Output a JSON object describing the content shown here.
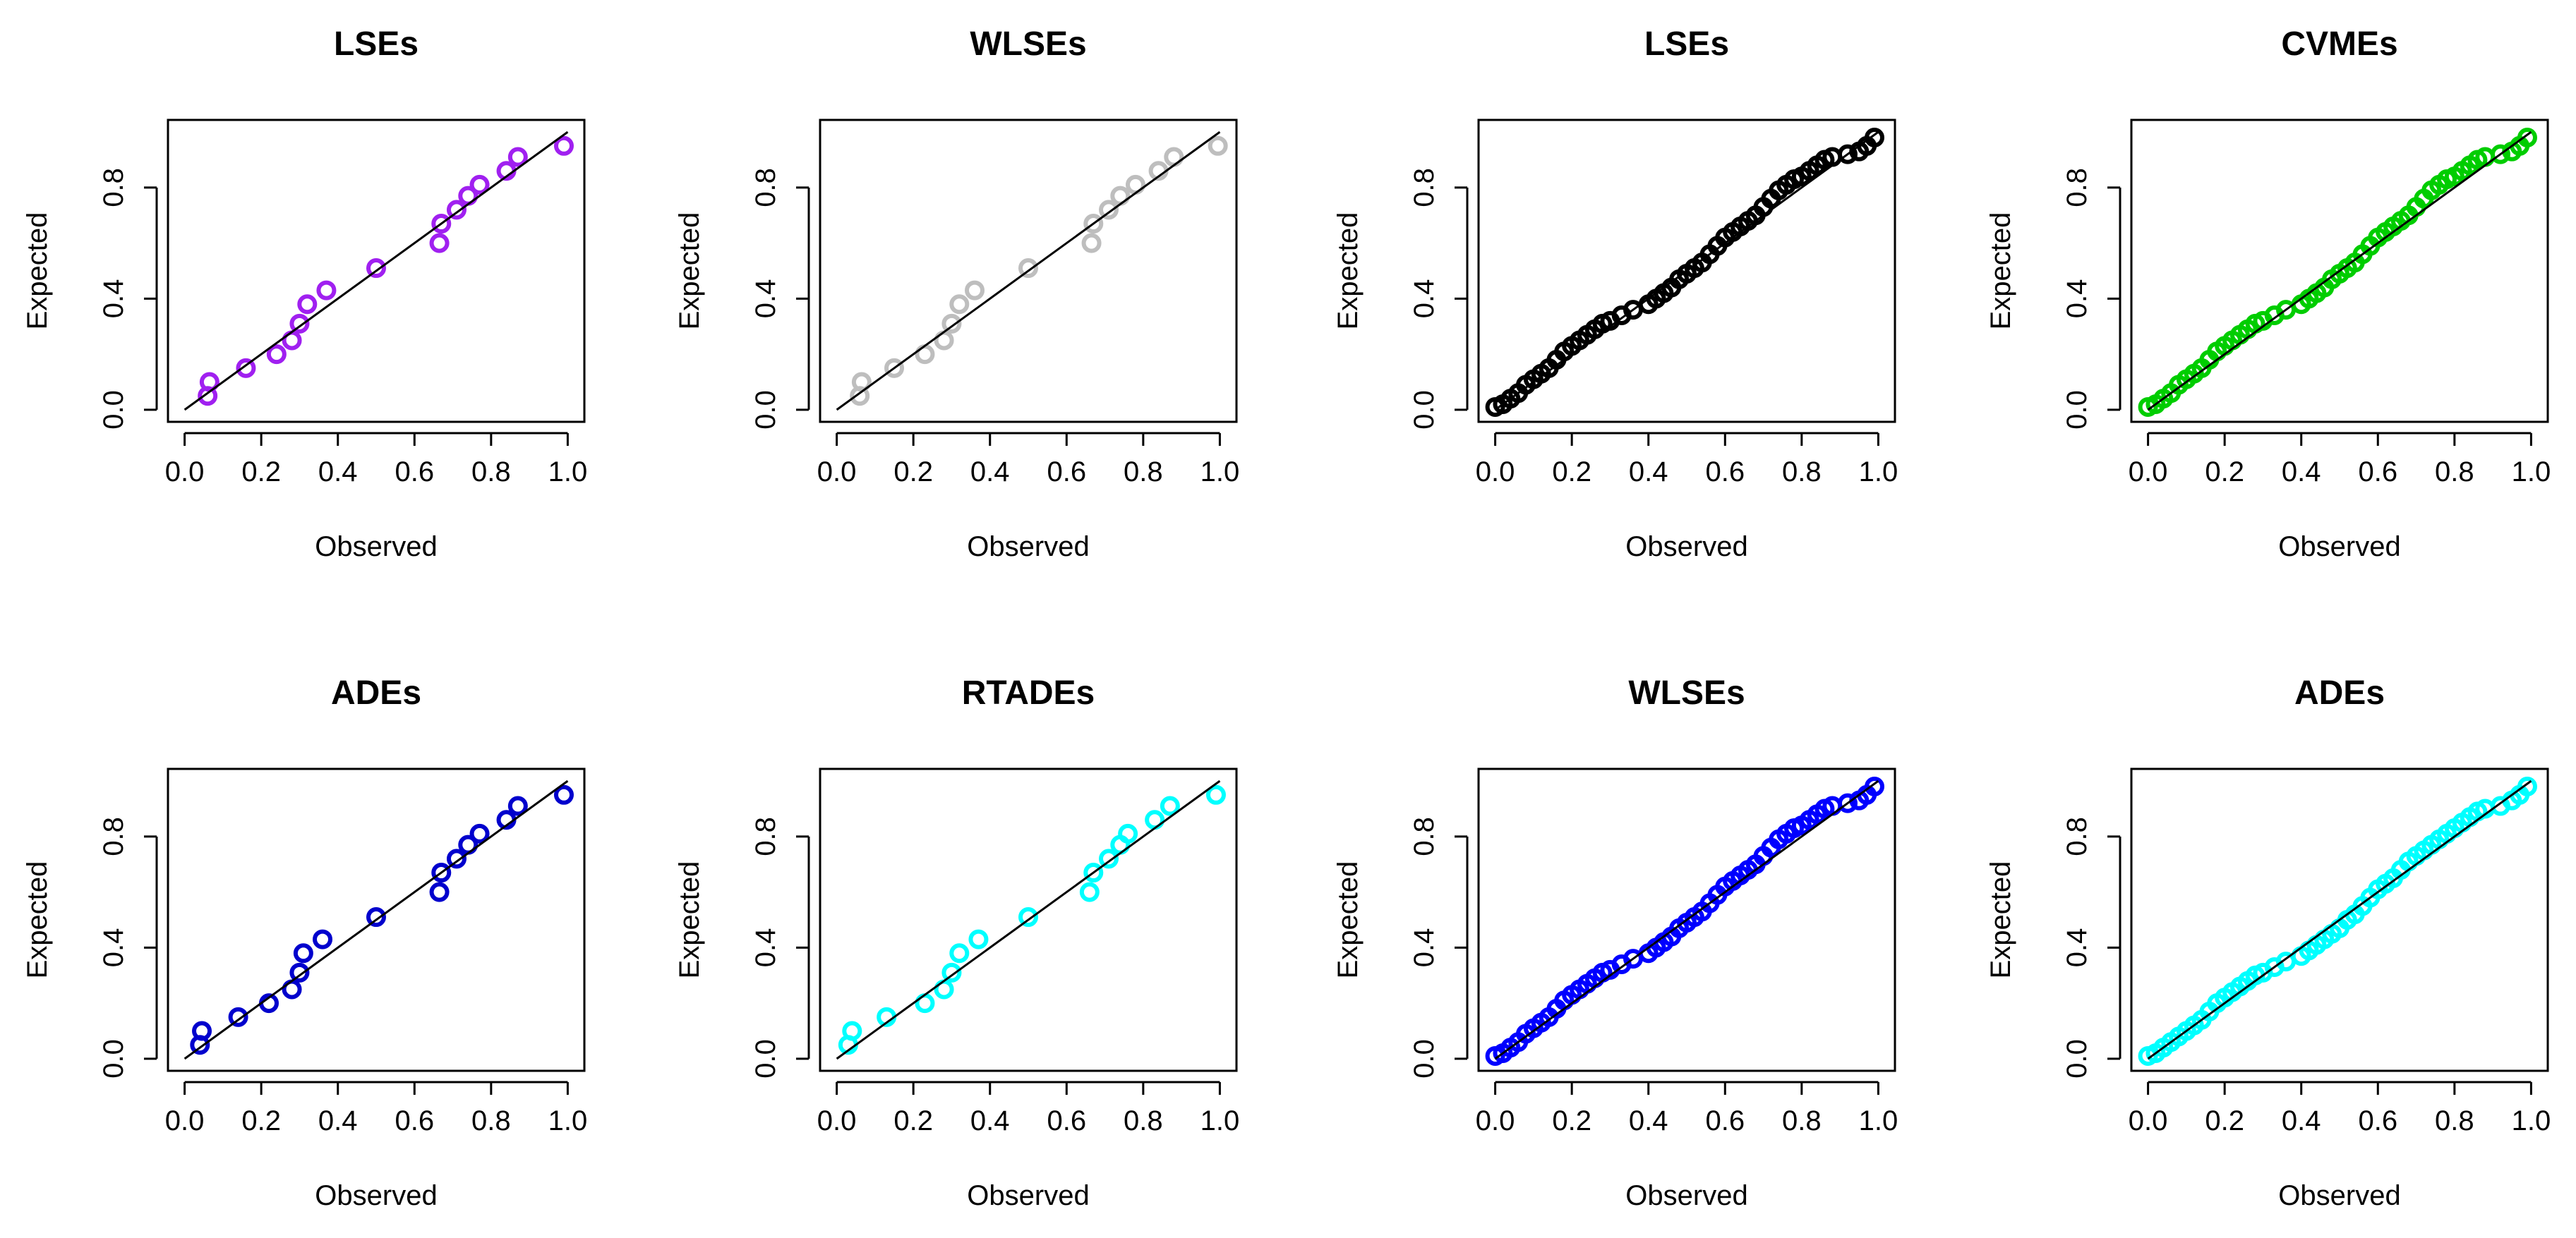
{
  "chart_data": [
    {
      "type": "scatter",
      "title": "LSEs",
      "xlabel": "Observed",
      "ylabel": "Expected",
      "xlim": [
        0,
        1
      ],
      "ylim": [
        0,
        1
      ],
      "xticks": [
        "0.0",
        "0.2",
        "0.4",
        "0.6",
        "0.8",
        "1.0"
      ],
      "yticks": [
        "0.0",
        "0.4",
        "0.8"
      ],
      "color": "#a020f0",
      "reference_line": [
        [
          0,
          0
        ],
        [
          1,
          1
        ]
      ],
      "points": [
        [
          0.06,
          0.05
        ],
        [
          0.065,
          0.1
        ],
        [
          0.16,
          0.15
        ],
        [
          0.24,
          0.2
        ],
        [
          0.28,
          0.25
        ],
        [
          0.3,
          0.31
        ],
        [
          0.32,
          0.38
        ],
        [
          0.37,
          0.43
        ],
        [
          0.5,
          0.51
        ],
        [
          0.665,
          0.6
        ],
        [
          0.67,
          0.67
        ],
        [
          0.71,
          0.72
        ],
        [
          0.74,
          0.77
        ],
        [
          0.77,
          0.81
        ],
        [
          0.84,
          0.86
        ],
        [
          0.87,
          0.91
        ],
        [
          0.99,
          0.95
        ]
      ]
    },
    {
      "type": "scatter",
      "title": "WLSEs",
      "xlabel": "Observed",
      "ylabel": "Expected",
      "xlim": [
        0,
        1
      ],
      "ylim": [
        0,
        1
      ],
      "xticks": [
        "0.0",
        "0.2",
        "0.4",
        "0.6",
        "0.8",
        "1.0"
      ],
      "yticks": [
        "0.0",
        "0.4",
        "0.8"
      ],
      "color": "#bebebe",
      "reference_line": [
        [
          0,
          0
        ],
        [
          1,
          1
        ]
      ],
      "points": [
        [
          0.06,
          0.05
        ],
        [
          0.065,
          0.1
        ],
        [
          0.15,
          0.15
        ],
        [
          0.23,
          0.2
        ],
        [
          0.28,
          0.25
        ],
        [
          0.3,
          0.31
        ],
        [
          0.32,
          0.38
        ],
        [
          0.36,
          0.43
        ],
        [
          0.5,
          0.51
        ],
        [
          0.665,
          0.6
        ],
        [
          0.67,
          0.67
        ],
        [
          0.71,
          0.72
        ],
        [
          0.74,
          0.77
        ],
        [
          0.78,
          0.81
        ],
        [
          0.84,
          0.86
        ],
        [
          0.88,
          0.91
        ],
        [
          0.995,
          0.95
        ]
      ]
    },
    {
      "type": "scatter",
      "title": "LSEs",
      "xlabel": "Observed",
      "ylabel": "Expected",
      "xlim": [
        0,
        1
      ],
      "ylim": [
        0,
        1
      ],
      "xticks": [
        "0.0",
        "0.2",
        "0.4",
        "0.6",
        "0.8",
        "1.0"
      ],
      "yticks": [
        "0.0",
        "0.4",
        "0.8"
      ],
      "color": "#000000",
      "reference_line": [
        [
          0,
          0
        ],
        [
          1,
          1
        ]
      ],
      "points": [
        [
          0.0,
          0.01
        ],
        [
          0.02,
          0.02
        ],
        [
          0.04,
          0.04
        ],
        [
          0.06,
          0.06
        ],
        [
          0.08,
          0.09
        ],
        [
          0.1,
          0.11
        ],
        [
          0.12,
          0.13
        ],
        [
          0.14,
          0.15
        ],
        [
          0.16,
          0.18
        ],
        [
          0.18,
          0.21
        ],
        [
          0.2,
          0.23
        ],
        [
          0.22,
          0.25
        ],
        [
          0.24,
          0.27
        ],
        [
          0.26,
          0.29
        ],
        [
          0.28,
          0.31
        ],
        [
          0.3,
          0.32
        ],
        [
          0.33,
          0.34
        ],
        [
          0.36,
          0.36
        ],
        [
          0.4,
          0.38
        ],
        [
          0.42,
          0.4
        ],
        [
          0.44,
          0.42
        ],
        [
          0.46,
          0.44
        ],
        [
          0.48,
          0.47
        ],
        [
          0.5,
          0.49
        ],
        [
          0.52,
          0.51
        ],
        [
          0.54,
          0.53
        ],
        [
          0.56,
          0.56
        ],
        [
          0.58,
          0.59
        ],
        [
          0.6,
          0.62
        ],
        [
          0.62,
          0.64
        ],
        [
          0.64,
          0.66
        ],
        [
          0.66,
          0.68
        ],
        [
          0.68,
          0.7
        ],
        [
          0.7,
          0.73
        ],
        [
          0.72,
          0.76
        ],
        [
          0.74,
          0.79
        ],
        [
          0.76,
          0.81
        ],
        [
          0.78,
          0.83
        ],
        [
          0.8,
          0.84
        ],
        [
          0.82,
          0.86
        ],
        [
          0.84,
          0.88
        ],
        [
          0.86,
          0.9
        ],
        [
          0.88,
          0.91
        ],
        [
          0.92,
          0.92
        ],
        [
          0.95,
          0.93
        ],
        [
          0.97,
          0.95
        ],
        [
          0.99,
          0.98
        ]
      ]
    },
    {
      "type": "scatter",
      "title": "CVMEs",
      "xlabel": "Observed",
      "ylabel": "Expected",
      "xlim": [
        0,
        1
      ],
      "ylim": [
        0,
        1
      ],
      "xticks": [
        "0.0",
        "0.2",
        "0.4",
        "0.6",
        "0.8",
        "1.0"
      ],
      "yticks": [
        "0.0",
        "0.4",
        "0.8"
      ],
      "color": "#00cd00",
      "reference_line": [
        [
          0,
          0
        ],
        [
          1,
          1
        ]
      ],
      "points": [
        [
          0.0,
          0.01
        ],
        [
          0.02,
          0.02
        ],
        [
          0.04,
          0.04
        ],
        [
          0.06,
          0.06
        ],
        [
          0.08,
          0.09
        ],
        [
          0.1,
          0.11
        ],
        [
          0.12,
          0.13
        ],
        [
          0.14,
          0.15
        ],
        [
          0.16,
          0.18
        ],
        [
          0.18,
          0.21
        ],
        [
          0.2,
          0.23
        ],
        [
          0.22,
          0.25
        ],
        [
          0.24,
          0.27
        ],
        [
          0.26,
          0.29
        ],
        [
          0.28,
          0.31
        ],
        [
          0.3,
          0.32
        ],
        [
          0.33,
          0.34
        ],
        [
          0.36,
          0.36
        ],
        [
          0.4,
          0.38
        ],
        [
          0.42,
          0.4
        ],
        [
          0.44,
          0.42
        ],
        [
          0.46,
          0.44
        ],
        [
          0.48,
          0.47
        ],
        [
          0.5,
          0.49
        ],
        [
          0.52,
          0.51
        ],
        [
          0.54,
          0.53
        ],
        [
          0.56,
          0.56
        ],
        [
          0.58,
          0.59
        ],
        [
          0.6,
          0.62
        ],
        [
          0.62,
          0.64
        ],
        [
          0.64,
          0.66
        ],
        [
          0.66,
          0.68
        ],
        [
          0.68,
          0.7
        ],
        [
          0.7,
          0.73
        ],
        [
          0.72,
          0.76
        ],
        [
          0.74,
          0.79
        ],
        [
          0.76,
          0.81
        ],
        [
          0.78,
          0.83
        ],
        [
          0.8,
          0.84
        ],
        [
          0.82,
          0.86
        ],
        [
          0.84,
          0.88
        ],
        [
          0.86,
          0.9
        ],
        [
          0.88,
          0.91
        ],
        [
          0.92,
          0.92
        ],
        [
          0.95,
          0.93
        ],
        [
          0.97,
          0.95
        ],
        [
          0.99,
          0.98
        ]
      ]
    },
    {
      "type": "scatter",
      "title": "ADEs",
      "xlabel": "Observed",
      "ylabel": "Expected",
      "xlim": [
        0,
        1
      ],
      "ylim": [
        0,
        1
      ],
      "xticks": [
        "0.0",
        "0.2",
        "0.4",
        "0.6",
        "0.8",
        "1.0"
      ],
      "yticks": [
        "0.0",
        "0.4",
        "0.8"
      ],
      "color": "#0000cd",
      "reference_line": [
        [
          0,
          0
        ],
        [
          1,
          1
        ]
      ],
      "points": [
        [
          0.04,
          0.05
        ],
        [
          0.045,
          0.1
        ],
        [
          0.14,
          0.15
        ],
        [
          0.22,
          0.2
        ],
        [
          0.28,
          0.25
        ],
        [
          0.3,
          0.31
        ],
        [
          0.31,
          0.38
        ],
        [
          0.36,
          0.43
        ],
        [
          0.5,
          0.51
        ],
        [
          0.665,
          0.6
        ],
        [
          0.67,
          0.67
        ],
        [
          0.71,
          0.72
        ],
        [
          0.74,
          0.77
        ],
        [
          0.77,
          0.81
        ],
        [
          0.84,
          0.86
        ],
        [
          0.87,
          0.91
        ],
        [
          0.99,
          0.95
        ]
      ]
    },
    {
      "type": "scatter",
      "title": "RTADEs",
      "xlabel": "Observed",
      "ylabel": "Expected",
      "xlim": [
        0,
        1
      ],
      "ylim": [
        0,
        1
      ],
      "xticks": [
        "0.0",
        "0.2",
        "0.4",
        "0.6",
        "0.8",
        "1.0"
      ],
      "yticks": [
        "0.0",
        "0.4",
        "0.8"
      ],
      "color": "#00ffff",
      "reference_line": [
        [
          0,
          0
        ],
        [
          1,
          1
        ]
      ],
      "points": [
        [
          0.03,
          0.05
        ],
        [
          0.04,
          0.1
        ],
        [
          0.13,
          0.15
        ],
        [
          0.23,
          0.2
        ],
        [
          0.28,
          0.25
        ],
        [
          0.3,
          0.31
        ],
        [
          0.32,
          0.38
        ],
        [
          0.37,
          0.43
        ],
        [
          0.5,
          0.51
        ],
        [
          0.66,
          0.6
        ],
        [
          0.67,
          0.67
        ],
        [
          0.71,
          0.72
        ],
        [
          0.74,
          0.77
        ],
        [
          0.76,
          0.81
        ],
        [
          0.83,
          0.86
        ],
        [
          0.87,
          0.91
        ],
        [
          0.99,
          0.95
        ]
      ]
    },
    {
      "type": "scatter",
      "title": "WLSEs",
      "xlabel": "Observed",
      "ylabel": "Expected",
      "xlim": [
        0,
        1
      ],
      "ylim": [
        0,
        1
      ],
      "xticks": [
        "0.0",
        "0.2",
        "0.4",
        "0.6",
        "0.8",
        "1.0"
      ],
      "yticks": [
        "0.0",
        "0.4",
        "0.8"
      ],
      "color": "#0000ff",
      "reference_line": [
        [
          0,
          0
        ],
        [
          1,
          1
        ]
      ],
      "points": [
        [
          0.0,
          0.01
        ],
        [
          0.02,
          0.02
        ],
        [
          0.04,
          0.04
        ],
        [
          0.06,
          0.06
        ],
        [
          0.08,
          0.09
        ],
        [
          0.1,
          0.11
        ],
        [
          0.12,
          0.13
        ],
        [
          0.14,
          0.15
        ],
        [
          0.16,
          0.18
        ],
        [
          0.18,
          0.21
        ],
        [
          0.2,
          0.23
        ],
        [
          0.22,
          0.25
        ],
        [
          0.24,
          0.27
        ],
        [
          0.26,
          0.29
        ],
        [
          0.28,
          0.31
        ],
        [
          0.3,
          0.32
        ],
        [
          0.33,
          0.34
        ],
        [
          0.36,
          0.36
        ],
        [
          0.4,
          0.38
        ],
        [
          0.42,
          0.4
        ],
        [
          0.44,
          0.42
        ],
        [
          0.46,
          0.44
        ],
        [
          0.48,
          0.47
        ],
        [
          0.5,
          0.49
        ],
        [
          0.52,
          0.51
        ],
        [
          0.54,
          0.53
        ],
        [
          0.56,
          0.56
        ],
        [
          0.58,
          0.59
        ],
        [
          0.6,
          0.62
        ],
        [
          0.62,
          0.64
        ],
        [
          0.64,
          0.66
        ],
        [
          0.66,
          0.68
        ],
        [
          0.68,
          0.7
        ],
        [
          0.7,
          0.73
        ],
        [
          0.72,
          0.76
        ],
        [
          0.74,
          0.79
        ],
        [
          0.76,
          0.81
        ],
        [
          0.78,
          0.83
        ],
        [
          0.8,
          0.84
        ],
        [
          0.82,
          0.86
        ],
        [
          0.84,
          0.88
        ],
        [
          0.86,
          0.9
        ],
        [
          0.88,
          0.91
        ],
        [
          0.92,
          0.92
        ],
        [
          0.95,
          0.93
        ],
        [
          0.97,
          0.95
        ],
        [
          0.99,
          0.98
        ]
      ]
    },
    {
      "type": "scatter",
      "title": "ADEs",
      "xlabel": "Observed",
      "ylabel": "Expected",
      "xlim": [
        0,
        1
      ],
      "ylim": [
        0,
        1
      ],
      "xticks": [
        "0.0",
        "0.2",
        "0.4",
        "0.6",
        "0.8",
        "1.0"
      ],
      "yticks": [
        "0.0",
        "0.4",
        "0.8"
      ],
      "color": "#00ffff",
      "reference_line": [
        [
          0,
          0
        ],
        [
          1,
          1
        ]
      ],
      "points": [
        [
          0.0,
          0.01
        ],
        [
          0.02,
          0.02
        ],
        [
          0.04,
          0.04
        ],
        [
          0.06,
          0.06
        ],
        [
          0.08,
          0.08
        ],
        [
          0.1,
          0.1
        ],
        [
          0.12,
          0.12
        ],
        [
          0.14,
          0.14
        ],
        [
          0.16,
          0.17
        ],
        [
          0.18,
          0.2
        ],
        [
          0.2,
          0.22
        ],
        [
          0.22,
          0.24
        ],
        [
          0.24,
          0.26
        ],
        [
          0.26,
          0.28
        ],
        [
          0.28,
          0.3
        ],
        [
          0.3,
          0.31
        ],
        [
          0.33,
          0.33
        ],
        [
          0.36,
          0.35
        ],
        [
          0.4,
          0.37
        ],
        [
          0.42,
          0.39
        ],
        [
          0.44,
          0.41
        ],
        [
          0.46,
          0.43
        ],
        [
          0.48,
          0.45
        ],
        [
          0.5,
          0.47
        ],
        [
          0.52,
          0.5
        ],
        [
          0.54,
          0.52
        ],
        [
          0.56,
          0.55
        ],
        [
          0.58,
          0.58
        ],
        [
          0.6,
          0.61
        ],
        [
          0.62,
          0.63
        ],
        [
          0.64,
          0.65
        ],
        [
          0.66,
          0.68
        ],
        [
          0.68,
          0.71
        ],
        [
          0.7,
          0.73
        ],
        [
          0.72,
          0.75
        ],
        [
          0.74,
          0.77
        ],
        [
          0.76,
          0.79
        ],
        [
          0.78,
          0.81
        ],
        [
          0.8,
          0.83
        ],
        [
          0.82,
          0.85
        ],
        [
          0.84,
          0.87
        ],
        [
          0.86,
          0.89
        ],
        [
          0.88,
          0.9
        ],
        [
          0.92,
          0.91
        ],
        [
          0.95,
          0.93
        ],
        [
          0.97,
          0.95
        ],
        [
          0.99,
          0.98
        ]
      ]
    }
  ]
}
